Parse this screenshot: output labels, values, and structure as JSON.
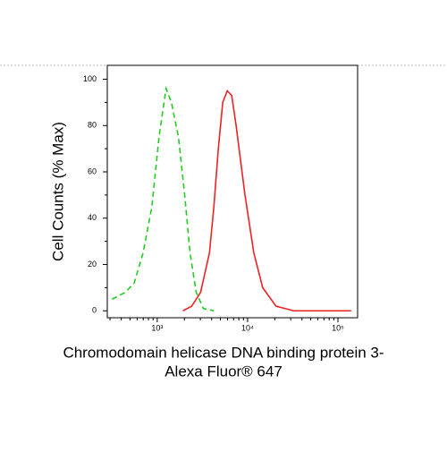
{
  "chart_data": {
    "type": "line",
    "xlabel": [
      "Chromodomain helicase DNA binding protein 3-",
      "Alexa Fluor® 647"
    ],
    "ylabel": "Cell Counts (% Max)",
    "xscale": "log",
    "xlim": [
      280,
      165000
    ],
    "ylim": [
      -3,
      106
    ],
    "xticks": [
      {
        "value": 1000,
        "label": "10³"
      },
      {
        "value": 10000,
        "label": "10⁴"
      },
      {
        "value": 100000,
        "label": "10⁵"
      }
    ],
    "yticks": [
      0,
      20,
      40,
      60,
      80,
      100
    ],
    "series": [
      {
        "color": "#22cc22",
        "dash": true,
        "x": [
          316,
          444,
          556,
          697,
          873,
          1046,
          1253,
          1435,
          1718,
          2013,
          2306,
          2698,
          3236,
          4236
        ],
        "values": [
          5,
          8,
          12,
          25,
          45,
          75,
          96,
          90,
          75,
          50,
          25,
          8,
          1,
          0
        ]
      },
      {
        "color": "#ee2222",
        "dash": false,
        "x": [
          1923,
          2410,
          3020,
          3784,
          4236,
          4742,
          5309,
          5957,
          6668,
          7464,
          9354,
          11722,
          14690,
          20606,
          32360,
          140300
        ],
        "values": [
          0,
          2,
          8,
          25,
          45,
          70,
          90,
          95,
          93,
          80,
          50,
          25,
          10,
          2,
          0,
          0
        ]
      }
    ]
  }
}
